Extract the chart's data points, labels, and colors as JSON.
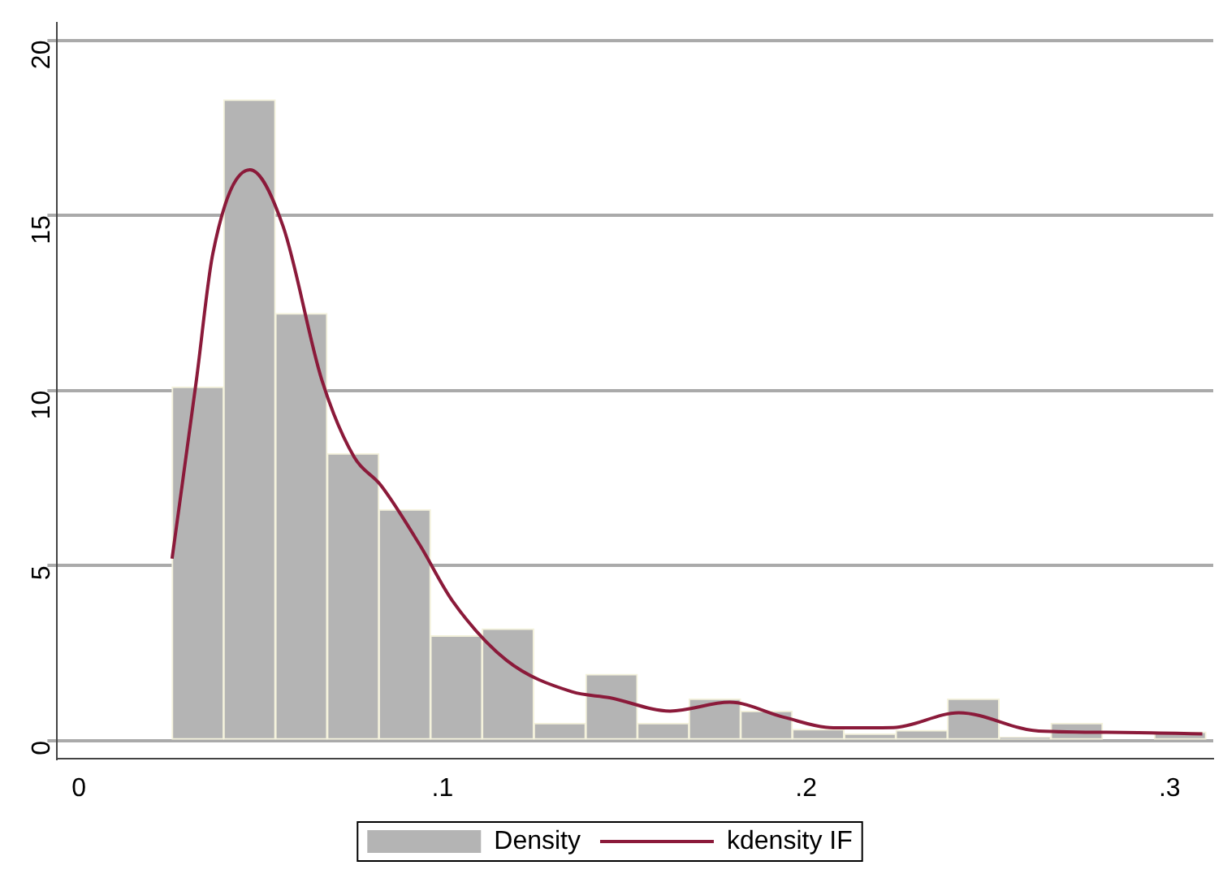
{
  "chart_data": {
    "type": "histogram",
    "series": [
      {
        "name": "Density",
        "color": "#b4b4b4",
        "bins": [
          0.0256,
          0.0398,
          0.054,
          0.0683,
          0.0825,
          0.0967,
          0.1109,
          0.1251,
          0.1394,
          0.1536,
          0.1678,
          0.182,
          0.1962,
          0.2105,
          0.2247,
          0.2389,
          0.2531,
          0.2673,
          0.2816,
          0.2958,
          0.31
        ],
        "values": [
          10.1,
          18.3,
          12.2,
          8.2,
          6.6,
          3.0,
          3.2,
          0.5,
          1.9,
          0.5,
          1.2,
          0.85,
          0.33,
          0.2,
          0.3,
          1.2,
          0.1,
          0.5,
          0,
          0.25
        ]
      },
      {
        "type": "line",
        "name": "kdensity IF",
        "color": "#8b1a3a",
        "x": [
          0.0256,
          0.0323,
          0.0368,
          0.047,
          0.0561,
          0.0668,
          0.0757,
          0.083,
          0.0937,
          0.1027,
          0.1176,
          0.1356,
          0.146,
          0.1626,
          0.179,
          0.194,
          0.2075,
          0.224,
          0.242,
          0.264,
          0.287,
          0.309
        ],
        "values": [
          5.2,
          10.3,
          13.9,
          16.3,
          14.7,
          10.3,
          8.1,
          7.3,
          5.6,
          4.0,
          2.3,
          1.4,
          1.23,
          0.85,
          1.1,
          0.67,
          0.37,
          0.38,
          0.8,
          0.28,
          0.24,
          0.2
        ]
      }
    ],
    "xlim": [
      -0.006,
      0.312
    ],
    "xticks": [
      0,
      {
        "value": 0.1,
        "label": ".1"
      },
      {
        "value": 0.2,
        "label": ".2"
      },
      {
        "value": 0.3,
        "label": ".3"
      }
    ],
    "ylim": [
      -0.5,
      20.5
    ],
    "yticks": [
      0,
      5,
      10,
      15,
      20
    ],
    "grid": "y",
    "legend": "bottom"
  }
}
